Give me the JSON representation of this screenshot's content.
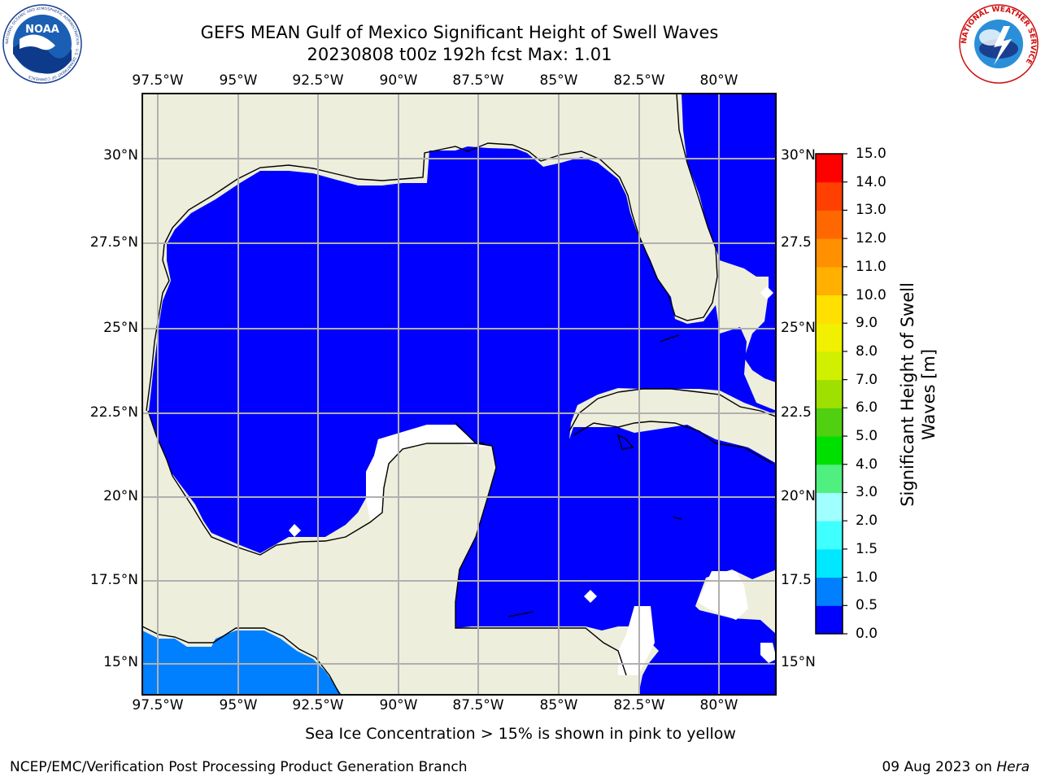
{
  "header": {
    "title_line1": "GEFS MEAN Gulf of Mexico Significant Height of Swell Waves",
    "title_line2": "20230808 t00z 192h fcst   Max: 1.01"
  },
  "logos": {
    "noaa_text": "NOAA",
    "noaa_ring": "NATIONAL OCEANIC AND ATMOSPHERIC ADMINISTRATION · U.S. DEPARTMENT OF COMMERCE",
    "nws_ring": "NATIONAL WEATHER SERVICE"
  },
  "map": {
    "lon_ticks": [
      "97.5°W",
      "95°W",
      "92.5°W",
      "90°W",
      "87.5°W",
      "85°W",
      "82.5°W",
      "80°W"
    ],
    "lat_ticks_left": [
      "30°N",
      "27.5°N",
      "25°N",
      "22.5°N",
      "20°N",
      "17.5°N",
      "15°N"
    ],
    "lat_ticks_right": [
      "30°N",
      "27.5",
      "25°N",
      "22.5",
      "20°N",
      "17.5",
      "15°N"
    ],
    "colors": {
      "land": "#eeeedc",
      "sea_0": "#0000ff",
      "sea_05": "#0080ff",
      "gridline": "#b0b0b0"
    }
  },
  "colorbar": {
    "label": "Significant Height of Swell Waves [m]",
    "label_line1": "Significant Height of Swell",
    "label_line2": "Waves [m]",
    "ticks": [
      "0.0",
      "0.5",
      "1.0",
      "1.5",
      "2.0",
      "3.0",
      "4.0",
      "5.0",
      "6.0",
      "7.0",
      "8.0",
      "9.0",
      "10.0",
      "11.0",
      "12.0",
      "13.0",
      "14.0",
      "15.0"
    ],
    "colors": [
      "#0000ff",
      "#0080ff",
      "#00e8ff",
      "#40ffff",
      "#a0ffff",
      "#50f080",
      "#00e000",
      "#50d010",
      "#a0e000",
      "#d0f000",
      "#f0f000",
      "#ffe000",
      "#ffb000",
      "#ff9000",
      "#ff6800",
      "#ff4000",
      "#ff0000"
    ]
  },
  "footer": {
    "note": "Sea Ice Concentration > 15% is shown in pink to yellow",
    "org": "NCEP/EMC/Verification Post Processing Product Generation Branch",
    "date": "09 Aug 2023 on ",
    "machine": "Hera"
  }
}
